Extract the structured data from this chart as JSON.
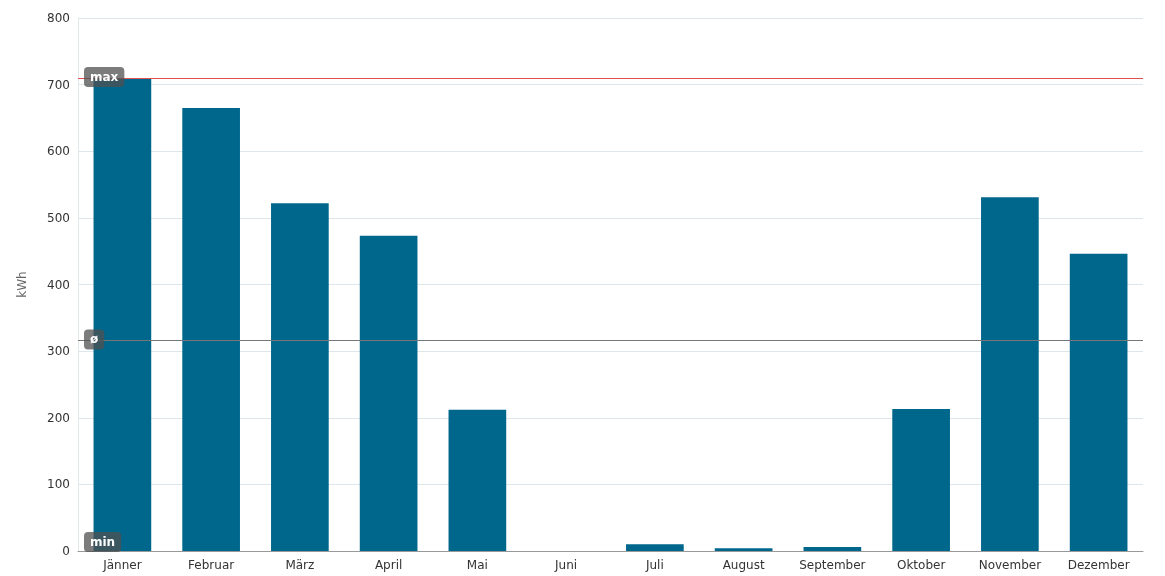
{
  "chart_data": {
    "type": "bar",
    "ylabel": "kWh",
    "categories": [
      "Jänner",
      "Februar",
      "März",
      "April",
      "Mai",
      "Juni",
      "Juli",
      "August",
      "September",
      "Oktober",
      "November",
      "Dezember"
    ],
    "values": [
      710,
      665,
      522,
      473,
      212,
      0,
      10,
      4,
      6,
      213,
      531,
      446
    ],
    "color": "#00678c",
    "ylim": [
      0,
      800
    ],
    "yticks": [
      0,
      100,
      200,
      300,
      400,
      500,
      600,
      700,
      800
    ],
    "grid": "y",
    "ref_lines": [
      {
        "axis": "y",
        "value": 710,
        "label": "max",
        "color": "#e05050"
      },
      {
        "axis": "y",
        "value": 316,
        "label": "ø",
        "color": "#777777"
      }
    ],
    "annotations": [
      {
        "text": "min",
        "y": 0
      }
    ]
  }
}
